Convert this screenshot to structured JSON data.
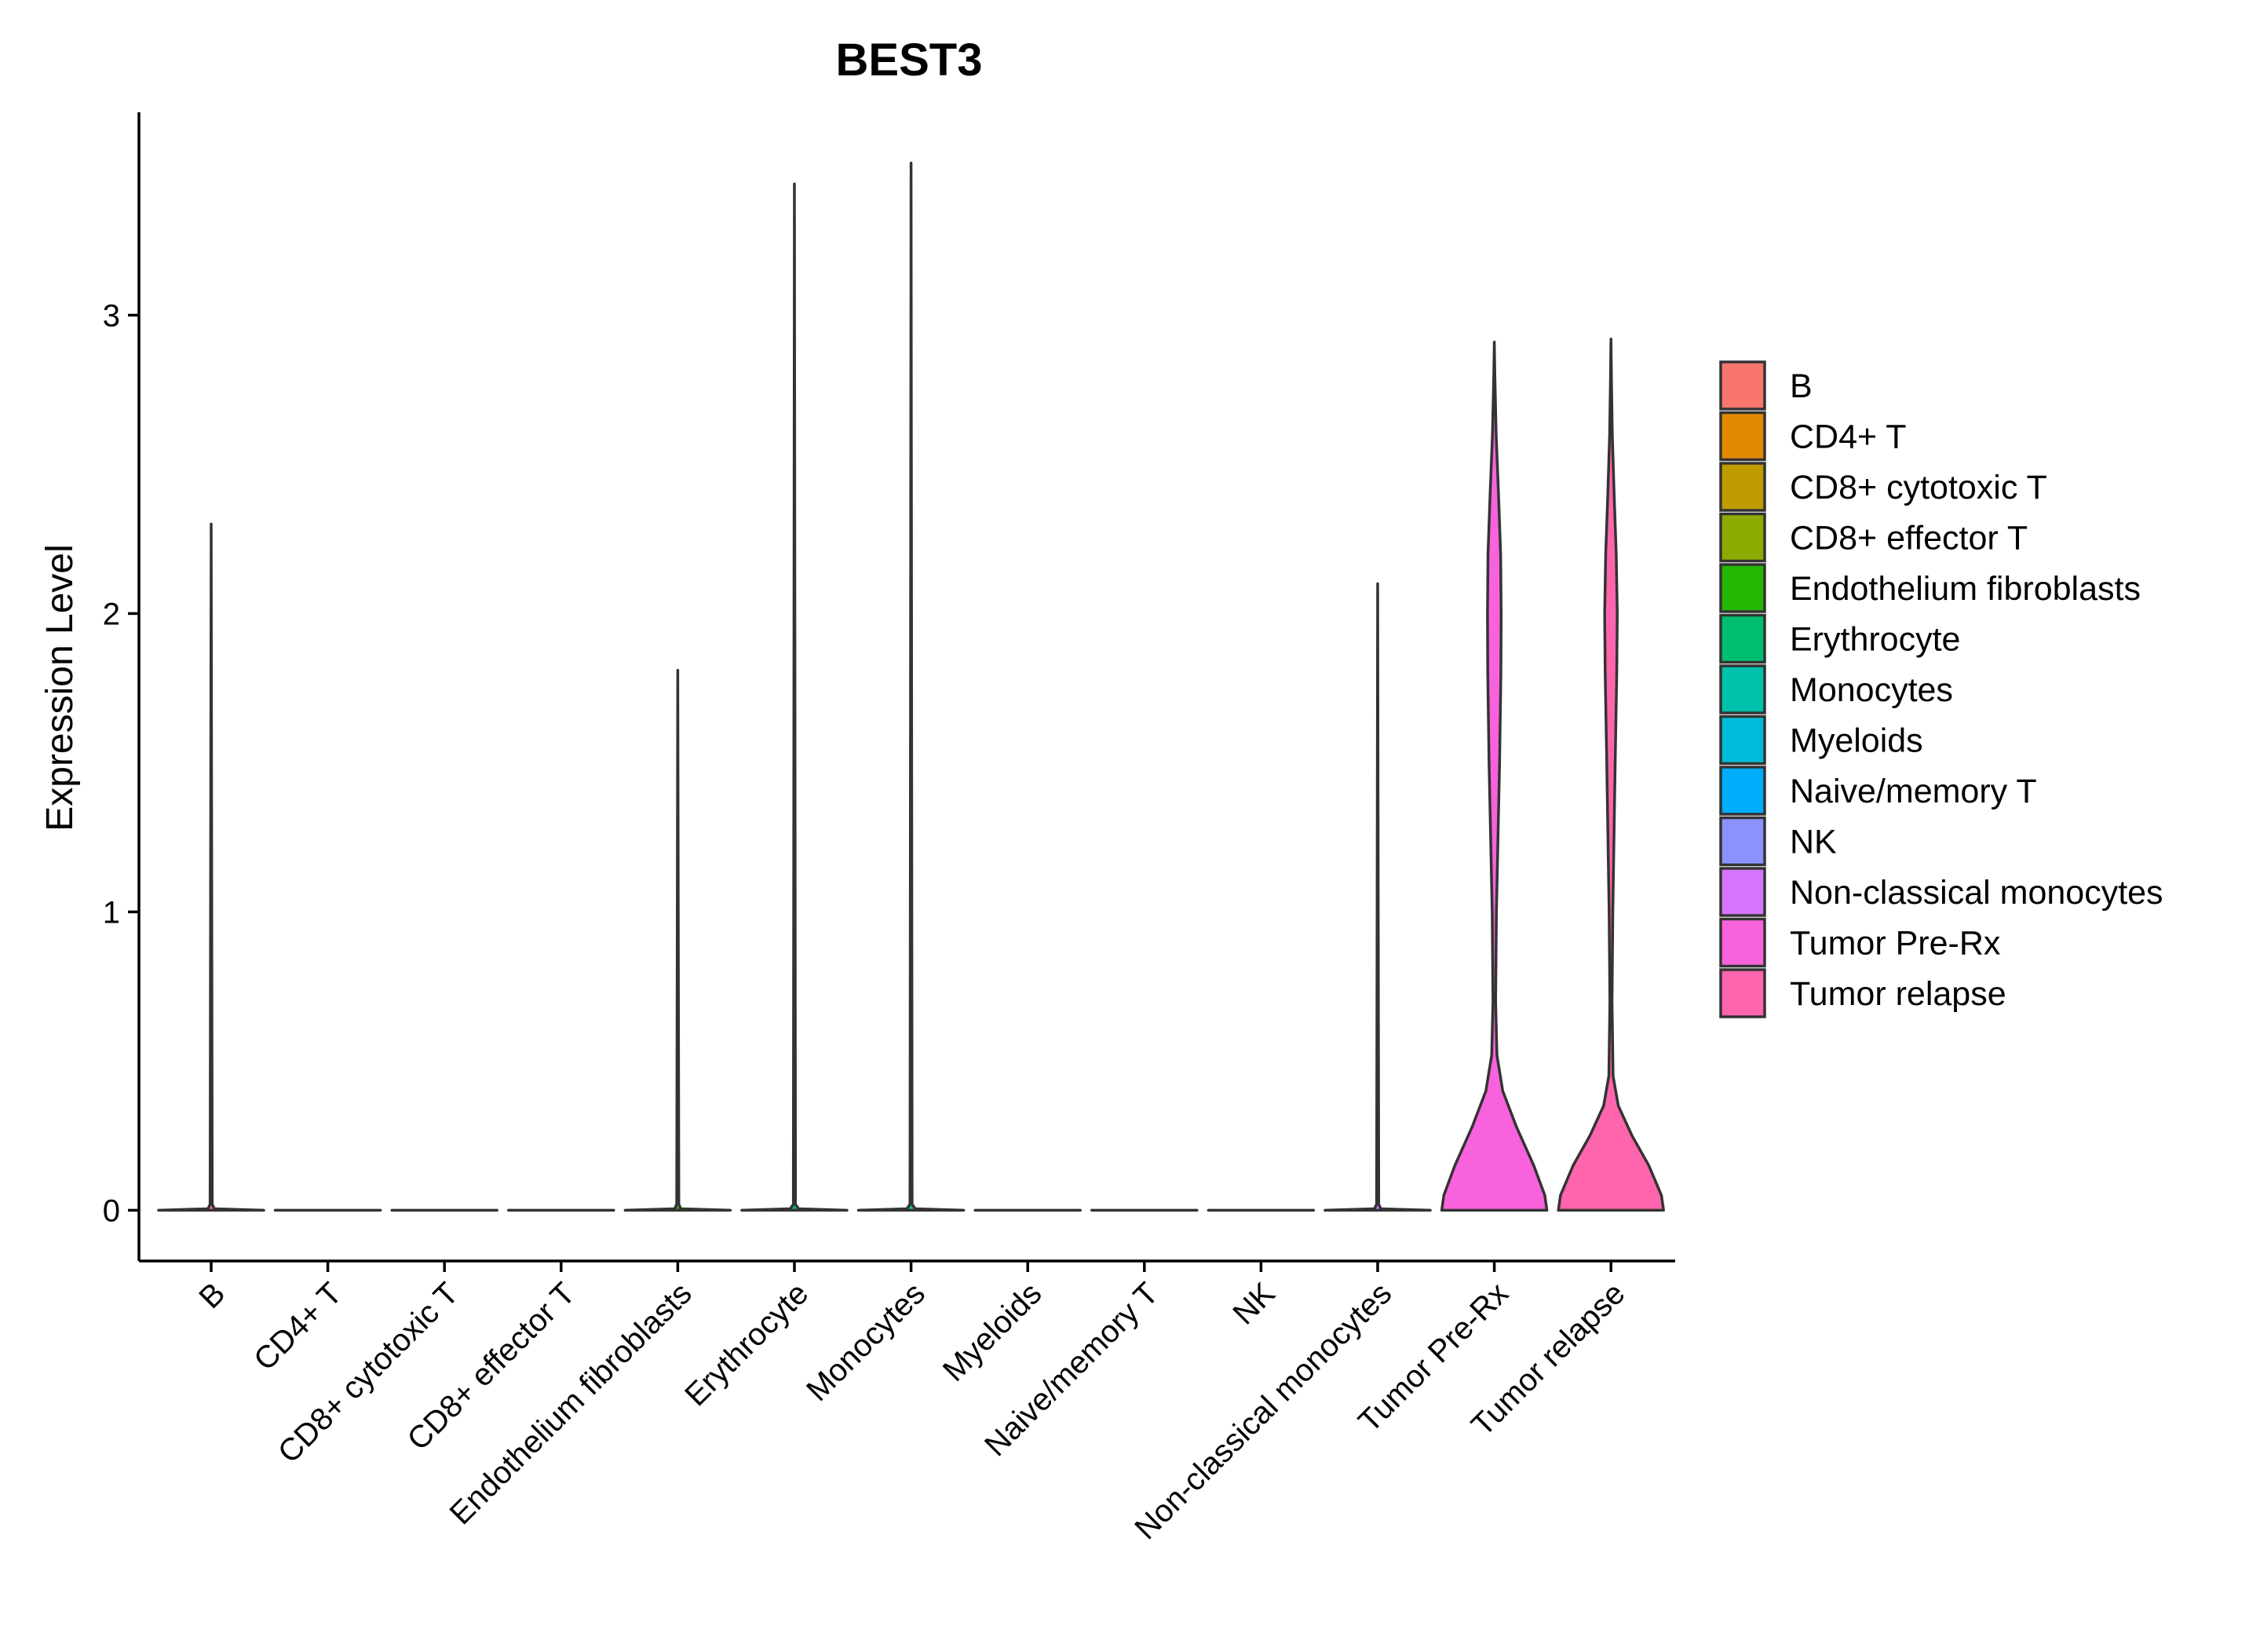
{
  "chart_data": {
    "type": "violin",
    "title": "BEST3",
    "xlabel": "",
    "ylabel": "Expression Level",
    "ylim": [
      -0.17,
      3.68
    ],
    "yticks": [
      0,
      1,
      2,
      3
    ],
    "grid": false,
    "legend_position": "right",
    "categories": [
      "B",
      "CD4+ T",
      "CD8+ cytotoxic T",
      "CD8+ effector T",
      "Endothelium fibroblasts",
      "Erythrocyte",
      "Monocytes",
      "Myeloids",
      "Naive/memory T",
      "NK",
      "Non-classical monocytes",
      "Tumor Pre-Rx",
      "Tumor relapse"
    ],
    "colors": [
      "#F8766D",
      "#E18A00",
      "#BE9C00",
      "#8CAB00",
      "#24B700",
      "#00BE70",
      "#00C1AB",
      "#00BBDA",
      "#00ACFC",
      "#8B93FF",
      "#D575FE",
      "#F962DD",
      "#FF65AC"
    ],
    "max_values": [
      2.3,
      0,
      0,
      0,
      1.81,
      3.44,
      3.51,
      0,
      0,
      0,
      2.1,
      2.91,
      2.92
    ],
    "violin_profiles": [
      [
        [
          0,
          1.0
        ],
        [
          0.005,
          0.06
        ],
        [
          0.02,
          0.02
        ],
        [
          2.3,
          0.0
        ]
      ],
      [
        [
          0,
          1.0
        ],
        [
          0,
          0
        ]
      ],
      [
        [
          0,
          1.0
        ],
        [
          0,
          0
        ]
      ],
      [
        [
          0,
          1.0
        ],
        [
          0,
          0
        ]
      ],
      [
        [
          0,
          1.0
        ],
        [
          0.005,
          0.06
        ],
        [
          0.02,
          0.02
        ],
        [
          1.81,
          0.0
        ]
      ],
      [
        [
          0,
          1.0
        ],
        [
          0.005,
          0.08
        ],
        [
          0.02,
          0.02
        ],
        [
          3.44,
          0.0
        ]
      ],
      [
        [
          0,
          1.0
        ],
        [
          0.005,
          0.08
        ],
        [
          0.02,
          0.02
        ],
        [
          3.51,
          0.0
        ]
      ],
      [
        [
          0,
          1.0
        ],
        [
          0,
          0
        ]
      ],
      [
        [
          0,
          1.0
        ],
        [
          0,
          0
        ]
      ],
      [
        [
          0,
          1.0
        ],
        [
          0,
          0
        ]
      ],
      [
        [
          0,
          1.0
        ],
        [
          0.005,
          0.06
        ],
        [
          0.02,
          0.02
        ],
        [
          2.1,
          0.0
        ]
      ],
      [
        [
          0,
          1.0
        ],
        [
          0.05,
          0.96
        ],
        [
          0.15,
          0.75
        ],
        [
          0.28,
          0.42
        ],
        [
          0.4,
          0.16
        ],
        [
          0.52,
          0.05
        ],
        [
          0.7,
          0.025
        ],
        [
          1.0,
          0.04
        ],
        [
          1.5,
          0.1
        ],
        [
          1.8,
          0.125
        ],
        [
          2.0,
          0.13
        ],
        [
          2.2,
          0.12
        ],
        [
          2.4,
          0.08
        ],
        [
          2.6,
          0.035
        ],
        [
          2.8,
          0.01
        ],
        [
          2.91,
          0.0
        ]
      ],
      [
        [
          0,
          1.0
        ],
        [
          0.05,
          0.96
        ],
        [
          0.15,
          0.72
        ],
        [
          0.25,
          0.4
        ],
        [
          0.35,
          0.14
        ],
        [
          0.45,
          0.04
        ],
        [
          0.7,
          0.02
        ],
        [
          1.0,
          0.035
        ],
        [
          1.5,
          0.08
        ],
        [
          1.8,
          0.11
        ],
        [
          2.0,
          0.12
        ],
        [
          2.2,
          0.1
        ],
        [
          2.4,
          0.06
        ],
        [
          2.6,
          0.025
        ],
        [
          2.8,
          0.008
        ],
        [
          2.92,
          0.0
        ]
      ]
    ]
  }
}
